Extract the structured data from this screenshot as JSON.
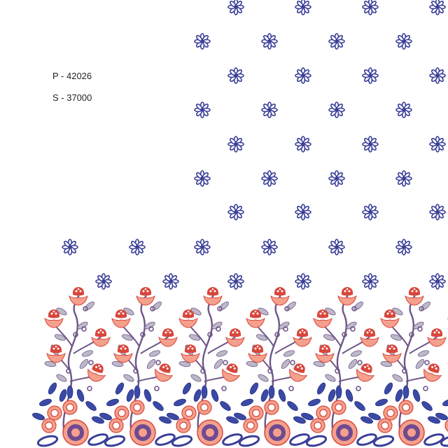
{
  "labels": {
    "p_code": "P - 42026",
    "s_code": "S - 37000"
  },
  "colors": {
    "motif_blue": "#3a3f98",
    "flower_salmon": "#f4a08c",
    "flower_red": "#d8463c",
    "leaf_grey": "#bdb8c8",
    "stem_purple": "#6f5688"
  }
}
